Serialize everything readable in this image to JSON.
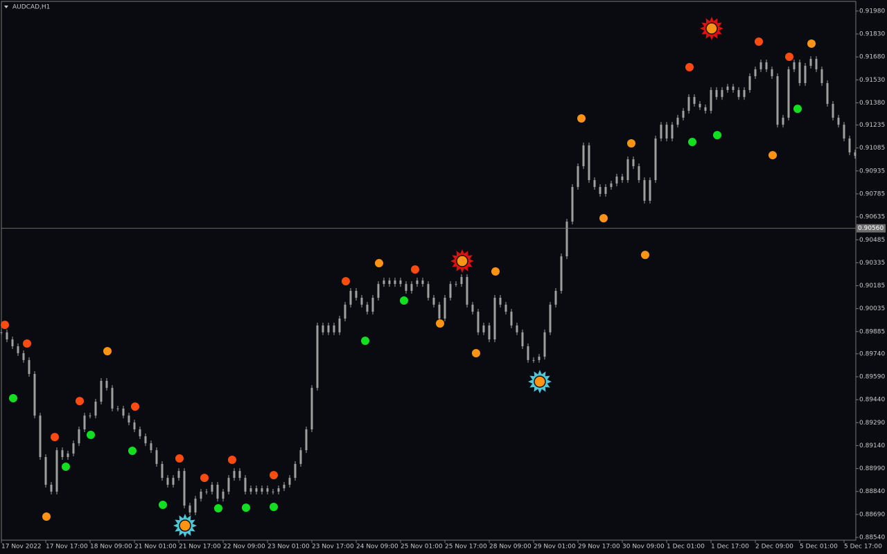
{
  "chart_data": {
    "type": "candles",
    "title": "AUDCAD,H1",
    "xlim": [
      0,
      308.25
    ],
    "ylim": [
      0.88522,
      0.92043
    ],
    "xticks": [
      {
        "value": 0,
        "label": "17 Nov 2022"
      },
      {
        "value": 16,
        "label": "17 Nov 17:00"
      },
      {
        "value": 32,
        "label": "18 Nov 09:00"
      },
      {
        "value": 48,
        "label": "21 Nov 01:00"
      },
      {
        "value": 64,
        "label": "21 Nov 17:00"
      },
      {
        "value": 80,
        "label": "22 Nov 09:00"
      },
      {
        "value": 96,
        "label": "23 Nov 01:00"
      },
      {
        "value": 112,
        "label": "23 Nov 17:00"
      },
      {
        "value": 128,
        "label": "24 Nov 09:00"
      },
      {
        "value": 144,
        "label": "25 Nov 01:00"
      },
      {
        "value": 160,
        "label": "25 Nov 17:00"
      },
      {
        "value": 176,
        "label": "28 Nov 09:00"
      },
      {
        "value": 192,
        "label": "29 Nov 01:00"
      },
      {
        "value": 208,
        "label": "29 Nov 17:00"
      },
      {
        "value": 224,
        "label": "30 Nov 09:00"
      },
      {
        "value": 240,
        "label": "1 Dec 01:00"
      },
      {
        "value": 256,
        "label": "1 Dec 17:00"
      },
      {
        "value": 272,
        "label": "2 Dec 09:00"
      },
      {
        "value": 288,
        "label": "5 Dec 01:00"
      },
      {
        "value": 304,
        "label": "5 Dec 17:00"
      }
    ],
    "yticks": [
      {
        "value": 0.9198,
        "label": "0.91980"
      },
      {
        "value": 0.9183,
        "label": "0.91830"
      },
      {
        "value": 0.9168,
        "label": "0.91680"
      },
      {
        "value": 0.9153,
        "label": "0.91530"
      },
      {
        "value": 0.9138,
        "label": "0.91380"
      },
      0.91235,
      0.91085,
      0.90935,
      0.90785,
      0.90635,
      0.90485,
      0.90335,
      0.90185,
      0.90035,
      0.89885,
      {
        "value": 0.8974,
        "label": "0.89740"
      },
      {
        "value": 0.8959,
        "label": "0.89590"
      },
      {
        "value": 0.8944,
        "label": "0.89440"
      },
      {
        "value": 0.8929,
        "label": "0.89290"
      },
      {
        "value": 0.8914,
        "label": "0.89140"
      },
      {
        "value": 0.8899,
        "label": "0.88990"
      },
      {
        "value": 0.8884,
        "label": "0.88840"
      },
      {
        "value": 0.8869,
        "label": "0.88690"
      },
      {
        "value": 0.8854,
        "label": "0.88540"
      }
    ],
    "current_price": {
      "value": 0.9056,
      "label": "0.90560"
    },
    "color": "#a0a0a0",
    "x": [
      0,
      2,
      4,
      6,
      8,
      10,
      12,
      14,
      16,
      18,
      20,
      22,
      24,
      26,
      28,
      30,
      32,
      34,
      36,
      38,
      40,
      42,
      44,
      46,
      48,
      50,
      52,
      54,
      56,
      58,
      60,
      62,
      64,
      66,
      68,
      70,
      72,
      74,
      76,
      78,
      80,
      82,
      84,
      86,
      88,
      90,
      92,
      94,
      96,
      98,
      100,
      102,
      104,
      106,
      108,
      110,
      112,
      114,
      116,
      118,
      120,
      122,
      124,
      126,
      128,
      130,
      132,
      134,
      136,
      138,
      140,
      142,
      144,
      146,
      148,
      150,
      152,
      154,
      156,
      158,
      160,
      162,
      164,
      166,
      168,
      170,
      172,
      174,
      176,
      178,
      180,
      182,
      184,
      186,
      188,
      190,
      192,
      194,
      196,
      198,
      200,
      202,
      204,
      206,
      208,
      210,
      212,
      214,
      216,
      218,
      220,
      222,
      224,
      226,
      228,
      230,
      232,
      234,
      236,
      238,
      240,
      242,
      244,
      246,
      248,
      250,
      252,
      254,
      256,
      258,
      260,
      262,
      264,
      266,
      268,
      270,
      272,
      274,
      276,
      278,
      280,
      282,
      284,
      286,
      288,
      290,
      292,
      294,
      296,
      298,
      300,
      302,
      304,
      306,
      308
    ],
    "values": [
      0.8988,
      0.89834,
      0.89789,
      0.89744,
      0.89699,
      0.89608,
      0.89336,
      0.89065,
      0.88884,
      0.88839,
      0.8911,
      0.89065,
      0.89088,
      0.89155,
      0.89246,
      0.89336,
      0.89336,
      0.89427,
      0.89563,
      0.89517,
      0.89382,
      0.89382,
      0.89336,
      0.89291,
      0.89246,
      0.89201,
      0.89155,
      0.8911,
      0.8902,
      0.88929,
      0.88884,
      0.88929,
      0.88974,
      0.88748,
      0.88703,
      0.88793,
      0.88839,
      0.88839,
      0.88884,
      0.88793,
      0.88839,
      0.88929,
      0.88974,
      0.88929,
      0.88839,
      0.88861,
      0.88839,
      0.88861,
      0.88839,
      0.88839,
      0.88861,
      0.88884,
      0.88929,
      0.8902,
      0.8911,
      0.89246,
      0.89517,
      0.89925,
      0.8988,
      0.89925,
      0.8988,
      0.8997,
      0.90061,
      0.90151,
      0.90106,
      0.90061,
      0.90015,
      0.90106,
      0.90196,
      0.90219,
      0.90196,
      0.90219,
      0.90196,
      0.90151,
      0.90196,
      0.90219,
      0.90196,
      0.90106,
      0.90061,
      0.8997,
      0.90106,
      0.90196,
      0.90196,
      0.90242,
      0.90061,
      0.90015,
      0.8988,
      0.89925,
      0.89834,
      0.90106,
      0.90061,
      0.90015,
      0.89925,
      0.8988,
      0.89789,
      0.89699,
      0.89699,
      0.89721,
      0.8988,
      0.90061,
      0.90151,
      0.90377,
      0.90604,
      0.9083,
      0.90966,
      0.91102,
      0.90875,
      0.9083,
      0.90785,
      0.9083,
      0.90853,
      0.90898,
      0.90875,
      0.91011,
      0.90966,
      0.90875,
      0.9074,
      0.90875,
      0.91147,
      0.91237,
      0.91147,
      0.91237,
      0.91283,
      0.91328,
      0.91418,
      0.91373,
      0.91351,
      0.91328,
      0.91464,
      0.91418,
      0.91464,
      0.91486,
      0.91464,
      0.91418,
      0.91464,
      0.91554,
      0.91599,
      0.91645,
      0.91599,
      0.91554,
      0.91237,
      0.91283,
      0.91599,
      0.91645,
      0.91509,
      0.91622,
      0.91667,
      0.91599,
      0.91509,
      0.91373,
      0.91283,
      0.91237,
      0.91147,
      0.91056,
      0.91034
    ],
    "markers": [
      {
        "shape": "dot",
        "color": "#ff4a12",
        "x": [
          1.25,
          9.25,
          19.25,
          28.25,
          48.25,
          64.25,
          73.25,
          83.25,
          98.25,
          124.25,
          149.25,
          248.25,
          273.25,
          284.25
        ],
        "values": [
          0.89929,
          0.89807,
          0.89196,
          0.89431,
          0.89395,
          0.89056,
          0.88929,
          0.89047,
          0.88947,
          0.90214,
          0.90291,
          0.91613,
          0.9178,
          0.91681
        ]
      },
      {
        "shape": "dot",
        "color": "#ff9414",
        "x": [
          16.25,
          38.25,
          136.25,
          158.25,
          171.25,
          178.25,
          209.25,
          217.25,
          227.25,
          232.25,
          278.25,
          292.25
        ],
        "values": [
          0.88676,
          0.89757,
          0.90332,
          0.89938,
          0.89744,
          0.90278,
          0.91278,
          0.90626,
          0.91115,
          0.90386,
          0.91038,
          0.91767
        ]
      },
      {
        "shape": "dot",
        "color": "#10e020",
        "x": [
          4.25,
          23.25,
          32.25,
          47.25,
          58.25,
          78.25,
          88.25,
          98.25,
          131.25,
          145.25,
          249.25,
          258.25,
          287.25
        ],
        "values": [
          0.8945,
          0.89002,
          0.8921,
          0.89106,
          0.88753,
          0.8873,
          0.88734,
          0.88739,
          0.89825,
          0.90088,
          0.91124,
          0.91169,
          0.91341
        ]
      },
      {
        "shape": "star",
        "color": "#e01010",
        "center_color": "#ff9414",
        "x": [
          166.25,
          256.25
        ],
        "values": [
          0.90346,
          0.91866
        ]
      },
      {
        "shape": "star",
        "color": "#4cc8d8",
        "center_color": "#ff9414",
        "x": [
          66.25,
          194.25
        ],
        "values": [
          0.88617,
          0.89558
        ]
      }
    ]
  }
}
